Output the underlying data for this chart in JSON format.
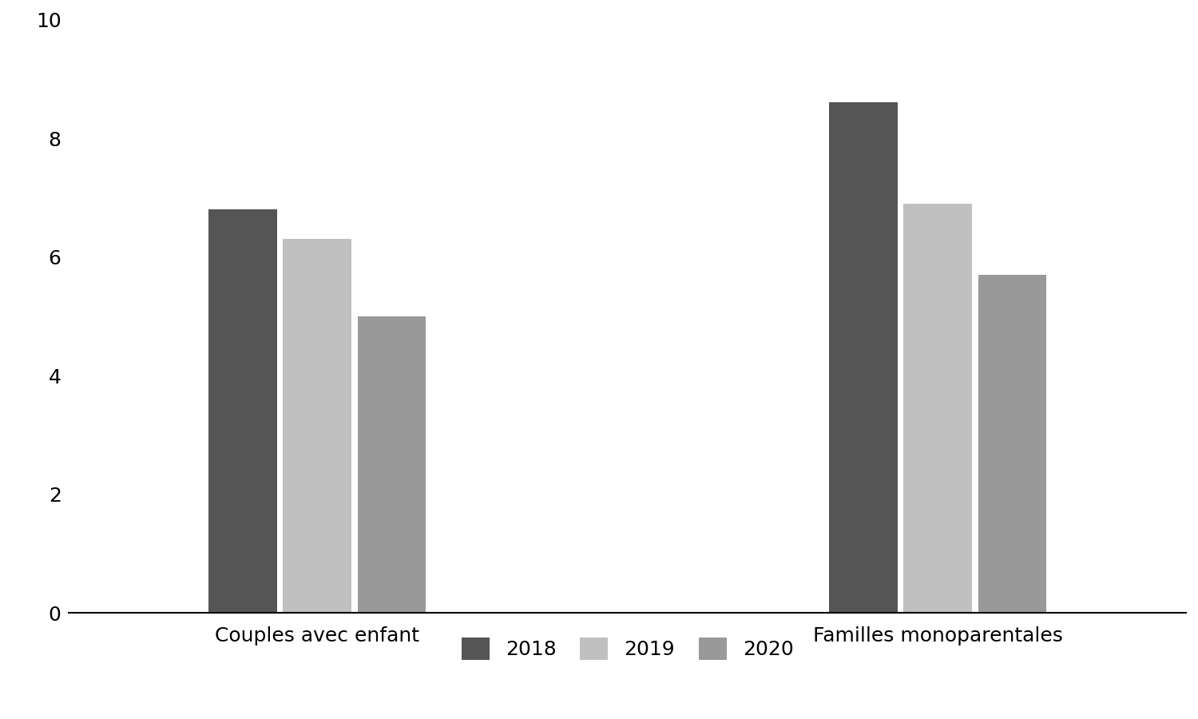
{
  "categories": [
    "Couples avec enfant",
    "Familles monoparentales"
  ],
  "years": [
    "2018",
    "2019",
    "2020"
  ],
  "values": {
    "Couples avec enfant": [
      6.8,
      6.3,
      5.0
    ],
    "Familles monoparentales": [
      8.6,
      6.9,
      5.7
    ]
  },
  "bar_colors": [
    "#555555",
    "#c0c0c0",
    "#999999"
  ],
  "ylim": [
    0,
    10
  ],
  "yticks": [
    0,
    2,
    4,
    6,
    8,
    10
  ],
  "legend_labels": [
    "2018",
    "2019",
    "2020"
  ],
  "background_color": "#ffffff",
  "bar_width": 0.18,
  "fontsize_labels": 18,
  "fontsize_ticks": 18,
  "fontsize_legend": 18
}
